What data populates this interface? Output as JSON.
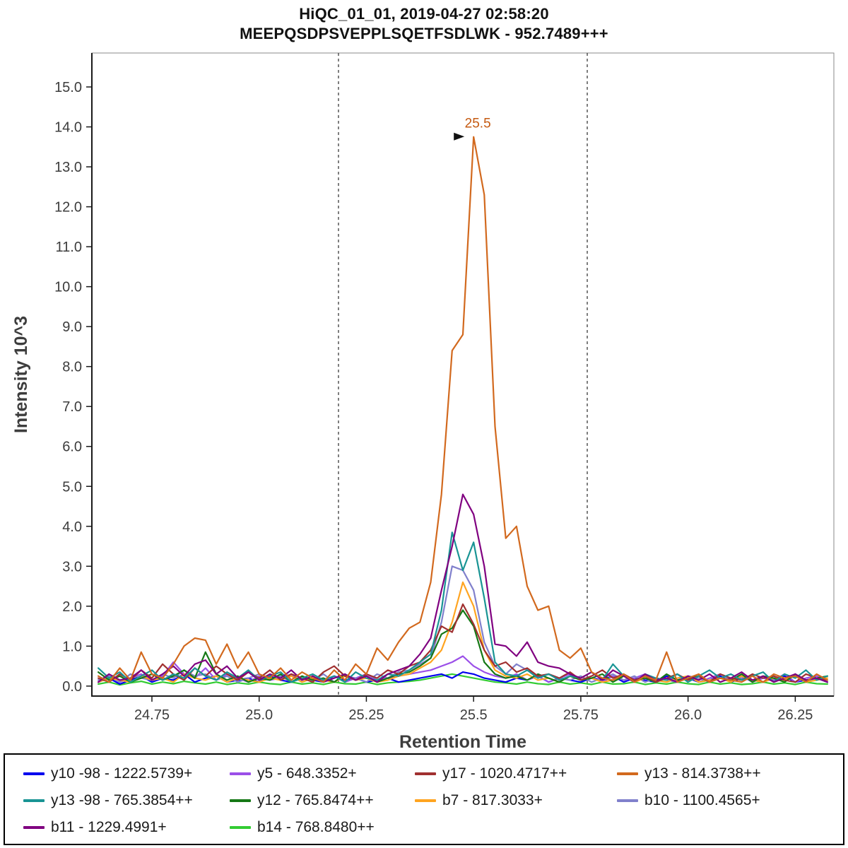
{
  "header": {
    "line1": "HiQC_01_01, 2019-04-27 02:58:20",
    "line2": "MEEPQSDPSVEPPLSQETFSDLWK - 952.7489+++"
  },
  "chart_data": {
    "type": "line",
    "title": "HiQC_01_01, 2019-04-27 02:58:20",
    "subtitle": "MEEPQSDPSVEPPLSQETFSDLWK - 952.7489+++",
    "xlabel": "Retention Time",
    "ylabel": "Intensity 10^3",
    "xlim": [
      24.61,
      26.34
    ],
    "ylim": [
      -0.25,
      15.85
    ],
    "grid": false,
    "legend_position": "bottom",
    "x_ticks": {
      "values": [
        24.75,
        25.0,
        25.25,
        25.5,
        25.75,
        26.0,
        26.25
      ],
      "labels": [
        "24.75",
        "25.0",
        "25.25",
        "25.5",
        "25.75",
        "26.0",
        "26.25"
      ]
    },
    "y_ticks": {
      "values": [
        0,
        1,
        2,
        3,
        4,
        5,
        6,
        7,
        8,
        9,
        10,
        11,
        12,
        13,
        14,
        15
      ],
      "labels": [
        "0.0",
        "1.0",
        "2.0",
        "3.0",
        "4.0",
        "5.0",
        "6.0",
        "7.0",
        "8.0",
        "9.0",
        "10.0",
        "11.0",
        "12.0",
        "13.0",
        "14.0",
        "15.0"
      ]
    },
    "integration_boundaries": [
      25.185,
      25.765
    ],
    "peak_annotation": {
      "text": "25.5",
      "x": 25.5,
      "y": 13.75,
      "color": "#c55a11"
    },
    "x": [
      24.625,
      24.65,
      24.675,
      24.7,
      24.725,
      24.75,
      24.775,
      24.8,
      24.825,
      24.85,
      24.875,
      24.9,
      24.925,
      24.95,
      24.975,
      25.0,
      25.025,
      25.05,
      25.075,
      25.1,
      25.125,
      25.15,
      25.175,
      25.2,
      25.225,
      25.25,
      25.275,
      25.3,
      25.325,
      25.35,
      25.375,
      25.4,
      25.425,
      25.45,
      25.475,
      25.5,
      25.525,
      25.55,
      25.575,
      25.6,
      25.625,
      25.65,
      25.675,
      25.7,
      25.725,
      25.75,
      25.775,
      25.8,
      25.825,
      25.85,
      25.875,
      25.9,
      25.925,
      25.95,
      25.975,
      26.0,
      26.025,
      26.05,
      26.075,
      26.1,
      26.125,
      26.15,
      26.175,
      26.2,
      26.225,
      26.25,
      26.275,
      26.3,
      26.325
    ],
    "series": [
      {
        "id": "y10-98",
        "label": "y10 -98 - 1222.5739+",
        "color": "#0000ee",
        "z": 2,
        "values": [
          0.1,
          0.2,
          0.05,
          0.15,
          0.25,
          0.1,
          0.2,
          0.15,
          0.3,
          0.1,
          0.2,
          0.25,
          0.1,
          0.15,
          0.2,
          0.1,
          0.25,
          0.15,
          0.1,
          0.2,
          0.15,
          0.1,
          0.25,
          0.15,
          0.2,
          0.1,
          0.15,
          0.2,
          0.1,
          0.15,
          0.2,
          0.25,
          0.3,
          0.2,
          0.35,
          0.3,
          0.2,
          0.15,
          0.1,
          0.2,
          0.15,
          0.25,
          0.1,
          0.2,
          0.15,
          0.1,
          0.2,
          0.15,
          0.25,
          0.1,
          0.2,
          0.15,
          0.1,
          0.25,
          0.15,
          0.2,
          0.1,
          0.15,
          0.25,
          0.1,
          0.2,
          0.15,
          0.1,
          0.2,
          0.25,
          0.1,
          0.15,
          0.2,
          0.1
        ]
      },
      {
        "id": "y5",
        "label": "y5 - 648.3352+",
        "color": "#9b4fe8",
        "z": 3,
        "values": [
          0.15,
          0.25,
          0.1,
          0.2,
          0.3,
          0.15,
          0.25,
          0.6,
          0.3,
          0.2,
          0.45,
          0.15,
          0.3,
          0.2,
          0.1,
          0.25,
          0.15,
          0.2,
          0.3,
          0.1,
          0.2,
          0.15,
          0.25,
          0.1,
          0.2,
          0.3,
          0.15,
          0.2,
          0.25,
          0.3,
          0.35,
          0.4,
          0.5,
          0.6,
          0.75,
          0.5,
          0.35,
          0.25,
          0.2,
          0.3,
          0.15,
          0.25,
          0.1,
          0.2,
          0.3,
          0.15,
          0.2,
          0.1,
          0.25,
          0.15,
          0.2,
          0.3,
          0.1,
          0.2,
          0.15,
          0.25,
          0.1,
          0.2,
          0.3,
          0.15,
          0.25,
          0.1,
          0.2,
          0.15,
          0.3,
          0.1,
          0.2,
          0.25,
          0.15
        ]
      },
      {
        "id": "y17",
        "label": "y17 - 1020.4717++",
        "color": "#a03030",
        "z": 7,
        "values": [
          0.2,
          0.1,
          0.3,
          0.15,
          0.4,
          0.2,
          0.55,
          0.3,
          0.15,
          0.45,
          0.25,
          0.5,
          0.3,
          0.15,
          0.35,
          0.2,
          0.4,
          0.15,
          0.3,
          0.2,
          0.1,
          0.35,
          0.5,
          0.25,
          0.15,
          0.3,
          0.2,
          0.4,
          0.3,
          0.5,
          0.6,
          0.9,
          1.5,
          1.35,
          2.05,
          1.55,
          0.9,
          0.5,
          0.6,
          0.35,
          0.45,
          0.25,
          0.3,
          0.2,
          0.35,
          0.15,
          0.25,
          0.4,
          0.2,
          0.3,
          0.15,
          0.25,
          0.1,
          0.2,
          0.3,
          0.15,
          0.25,
          0.1,
          0.3,
          0.2,
          0.15,
          0.3,
          0.2,
          0.25,
          0.15,
          0.1,
          0.3,
          0.2,
          0.15
        ]
      },
      {
        "id": "y13",
        "label": "y13 - 814.3738++",
        "color": "#d2691e",
        "z": 10,
        "values": [
          0.25,
          0.1,
          0.45,
          0.15,
          0.85,
          0.3,
          0.2,
          0.55,
          1.0,
          1.2,
          1.15,
          0.55,
          1.05,
          0.45,
          0.85,
          0.3,
          0.2,
          0.45,
          0.15,
          0.35,
          0.2,
          0.1,
          0.4,
          0.15,
          0.55,
          0.3,
          0.95,
          0.65,
          1.1,
          1.45,
          1.6,
          2.6,
          4.8,
          8.4,
          8.8,
          13.75,
          12.3,
          6.5,
          3.7,
          4.0,
          2.5,
          1.9,
          2.0,
          0.9,
          0.7,
          0.95,
          0.35,
          0.2,
          0.15,
          0.3,
          0.1,
          0.25,
          0.15,
          0.85,
          0.1,
          0.2,
          0.3,
          0.1,
          0.2,
          0.15,
          0.1,
          0.25,
          0.1,
          0.3,
          0.2,
          0.25,
          0.1,
          0.3,
          0.15
        ]
      },
      {
        "id": "y13-98",
        "label": "y13 -98 - 765.3854++",
        "color": "#199494",
        "z": 8,
        "values": [
          0.45,
          0.2,
          0.35,
          0.1,
          0.25,
          0.4,
          0.15,
          0.3,
          0.2,
          0.45,
          0.25,
          0.15,
          0.35,
          0.2,
          0.4,
          0.15,
          0.25,
          0.35,
          0.1,
          0.2,
          0.3,
          0.15,
          0.25,
          0.1,
          0.35,
          0.2,
          0.15,
          0.3,
          0.25,
          0.4,
          0.6,
          0.8,
          1.9,
          3.85,
          2.9,
          3.6,
          2.2,
          0.6,
          0.3,
          0.25,
          0.4,
          0.2,
          0.3,
          0.15,
          0.25,
          0.2,
          0.35,
          0.15,
          0.55,
          0.25,
          0.1,
          0.3,
          0.2,
          0.15,
          0.3,
          0.1,
          0.25,
          0.4,
          0.2,
          0.3,
          0.15,
          0.25,
          0.35,
          0.1,
          0.3,
          0.2,
          0.4,
          0.15,
          0.25
        ]
      },
      {
        "id": "y12",
        "label": "y12 - 765.8474++",
        "color": "#167816",
        "z": 6,
        "values": [
          0.35,
          0.15,
          0.25,
          0.1,
          0.2,
          0.3,
          0.15,
          0.25,
          0.4,
          0.2,
          0.85,
          0.3,
          0.15,
          0.25,
          0.1,
          0.2,
          0.15,
          0.3,
          0.1,
          0.25,
          0.15,
          0.2,
          0.1,
          0.3,
          0.15,
          0.25,
          0.1,
          0.2,
          0.3,
          0.35,
          0.5,
          0.7,
          1.3,
          1.45,
          1.9,
          1.5,
          0.6,
          0.3,
          0.2,
          0.25,
          0.15,
          0.3,
          0.2,
          0.1,
          0.25,
          0.15,
          0.2,
          0.3,
          0.1,
          0.25,
          0.15,
          0.2,
          0.1,
          0.3,
          0.15,
          0.2,
          0.25,
          0.1,
          0.2,
          0.15,
          0.3,
          0.1,
          0.25,
          0.2,
          0.1,
          0.3,
          0.15,
          0.2,
          0.25
        ]
      },
      {
        "id": "b7",
        "label": "b7 - 817.3033+",
        "color": "#ffa420",
        "z": 5,
        "values": [
          0.1,
          0.2,
          0.15,
          0.1,
          0.25,
          0.15,
          0.2,
          0.1,
          0.3,
          0.2,
          0.15,
          0.25,
          0.1,
          0.2,
          0.15,
          0.1,
          0.2,
          0.15,
          0.25,
          0.1,
          0.2,
          0.15,
          0.1,
          0.25,
          0.15,
          0.2,
          0.1,
          0.15,
          0.25,
          0.3,
          0.45,
          0.6,
          0.9,
          1.6,
          2.6,
          2.0,
          0.9,
          0.4,
          0.25,
          0.2,
          0.3,
          0.15,
          0.2,
          0.1,
          0.25,
          0.15,
          0.2,
          0.1,
          0.15,
          0.25,
          0.1,
          0.2,
          0.15,
          0.1,
          0.2,
          0.25,
          0.1,
          0.15,
          0.2,
          0.1,
          0.25,
          0.15,
          0.1,
          0.2,
          0.15,
          0.25,
          0.1,
          0.15,
          0.2
        ]
      },
      {
        "id": "b10",
        "label": "b10 - 1100.4565+",
        "color": "#8080cc",
        "z": 4,
        "values": [
          0.15,
          0.25,
          0.1,
          0.3,
          0.2,
          0.15,
          0.3,
          0.2,
          0.4,
          0.25,
          0.3,
          0.15,
          0.25,
          0.1,
          0.2,
          0.3,
          0.15,
          0.25,
          0.1,
          0.2,
          0.15,
          0.3,
          0.1,
          0.25,
          0.2,
          0.1,
          0.3,
          0.2,
          0.35,
          0.4,
          0.55,
          0.7,
          1.6,
          3.0,
          2.9,
          2.4,
          1.1,
          0.5,
          0.3,
          0.55,
          0.4,
          0.25,
          0.3,
          0.2,
          0.15,
          0.25,
          0.1,
          0.2,
          0.3,
          0.15,
          0.25,
          0.1,
          0.2,
          0.15,
          0.1,
          0.25,
          0.2,
          0.1,
          0.3,
          0.15,
          0.2,
          0.25,
          0.1,
          0.2,
          0.15,
          0.3,
          0.1,
          0.2,
          0.15
        ]
      },
      {
        "id": "b11",
        "label": "b11 - 1229.4991+",
        "color": "#800080",
        "z": 9,
        "values": [
          0.1,
          0.3,
          0.15,
          0.2,
          0.4,
          0.15,
          0.3,
          0.5,
          0.25,
          0.55,
          0.65,
          0.3,
          0.5,
          0.2,
          0.35,
          0.15,
          0.3,
          0.2,
          0.4,
          0.15,
          0.25,
          0.1,
          0.2,
          0.3,
          0.15,
          0.25,
          0.1,
          0.3,
          0.4,
          0.5,
          0.8,
          1.2,
          2.4,
          3.5,
          4.8,
          4.3,
          3.0,
          1.05,
          1.0,
          0.75,
          1.1,
          0.6,
          0.5,
          0.45,
          0.3,
          0.2,
          0.35,
          0.15,
          0.4,
          0.25,
          0.1,
          0.3,
          0.15,
          0.2,
          0.1,
          0.25,
          0.15,
          0.3,
          0.1,
          0.2,
          0.35,
          0.15,
          0.25,
          0.1,
          0.2,
          0.3,
          0.15,
          0.2,
          0.1
        ]
      },
      {
        "id": "b14",
        "label": "b14 - 768.8480++",
        "color": "#33cc33",
        "z": 1,
        "values": [
          0.05,
          0.1,
          0.03,
          0.08,
          0.12,
          0.05,
          0.1,
          0.06,
          0.12,
          0.08,
          0.05,
          0.1,
          0.04,
          0.08,
          0.05,
          0.1,
          0.06,
          0.04,
          0.1,
          0.05,
          0.08,
          0.04,
          0.1,
          0.06,
          0.05,
          0.1,
          0.04,
          0.08,
          0.1,
          0.12,
          0.15,
          0.2,
          0.25,
          0.3,
          0.25,
          0.2,
          0.15,
          0.1,
          0.08,
          0.05,
          0.1,
          0.06,
          0.04,
          0.1,
          0.05,
          0.08,
          0.04,
          0.1,
          0.05,
          0.06,
          0.1,
          0.04,
          0.08,
          0.05,
          0.1,
          0.06,
          0.04,
          0.1,
          0.05,
          0.08,
          0.04,
          0.06,
          0.1,
          0.05,
          0.08,
          0.04,
          0.1,
          0.06,
          0.05
        ]
      }
    ]
  }
}
